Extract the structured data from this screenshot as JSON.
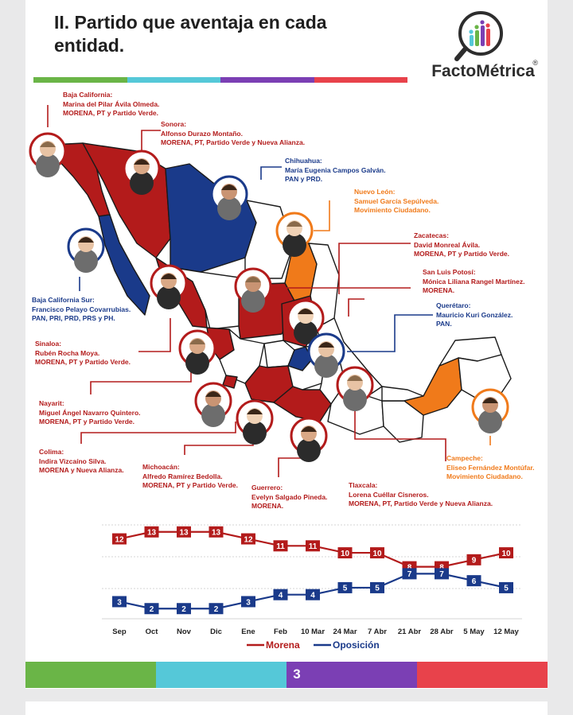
{
  "page_title": "II. Partido que aventaja en cada entidad.",
  "logo": {
    "name": "FactoMétrica",
    "reg": "®"
  },
  "colors": {
    "green": "#6ab547",
    "cyan": "#55c8d8",
    "purple": "#7b3fb4",
    "red_bar": "#e8424b",
    "morena": "#b31b1b",
    "oposicion": "#1a3a8a",
    "mc": "#f07a1a"
  },
  "callouts": [
    {
      "state": "Baja California:",
      "name": "Marina del Pilar Ávila Olmeda.",
      "party": "MORENA, PT y Partido Verde.",
      "color": "red"
    },
    {
      "state": "Sonora:",
      "name": "Alfonso Durazo Montaño.",
      "party": "MORENA, PT, Partido Verde y Nueva Alianza.",
      "color": "red"
    },
    {
      "state": "Chihuahua:",
      "name": "María Eugenia Campos Galván.",
      "party": "PAN y PRD.",
      "color": "blue"
    },
    {
      "state": "Nuevo León:",
      "name": "Samuel García Sepúlveda.",
      "party": "Movimiento Ciudadano.",
      "color": "orange"
    },
    {
      "state": "Zacatecas:",
      "name": "David Monreal Ávila.",
      "party": "MORENA, PT y Partido Verde.",
      "color": "red"
    },
    {
      "state": "San Luis Potosí:",
      "name": "Mónica Liliana Rangel Martínez.",
      "party": "MORENA.",
      "color": "red"
    },
    {
      "state": "Querétaro:",
      "name": "Mauricio Kuri González.",
      "party": "PAN.",
      "color": "blue"
    },
    {
      "state": "Baja California Sur:",
      "name": "Francisco Pelayo Covarrubias.",
      "party": "PAN, PRI, PRD, PRS y PH.",
      "color": "blue"
    },
    {
      "state": "Sinaloa:",
      "name": "Rubén Rocha Moya.",
      "party": "MORENA, PT y Partido Verde.",
      "color": "red"
    },
    {
      "state": "Nayarit:",
      "name": "Miguel Ángel Navarro Quintero.",
      "party": "MORENA, PT y Partido Verde.",
      "color": "red"
    },
    {
      "state": "Colima:",
      "name": "Indira Vizcaíno Silva.",
      "party": "MORENA y Nueva Alianza.",
      "color": "red"
    },
    {
      "state": "Michoacán:",
      "name": "Alfredo Ramírez Bedolla.",
      "party": "MORENA, PT y Partido Verde.",
      "color": "red"
    },
    {
      "state": "Guerrero:",
      "name": "Evelyn Salgado Pineda.",
      "party": "MORENA.",
      "color": "red"
    },
    {
      "state": "Tlaxcala:",
      "name": "Lorena Cuéllar Cisneros.",
      "party": "MORENA, PT, Partido Verde y Nueva Alianza.",
      "color": "red"
    },
    {
      "state": "Campeche:",
      "name": "Eliseo Fernández Montúfar.",
      "party": "Movimiento Ciudadano.",
      "color": "orange"
    }
  ],
  "chart_data": {
    "type": "line",
    "categories": [
      "Sep",
      "Oct",
      "Nov",
      "Dic",
      "Ene",
      "Feb",
      "10 Mar",
      "24 Mar",
      "7 Abr",
      "21 Abr",
      "28 Abr",
      "5 May",
      "12 May"
    ],
    "series": [
      {
        "name": "Morena",
        "color": "#b31b1b",
        "values": [
          12,
          13,
          13,
          13,
          12,
          11,
          11,
          10,
          10,
          8,
          8,
          9,
          10
        ]
      },
      {
        "name": "Oposición",
        "color": "#1a3a8a",
        "values": [
          3,
          2,
          2,
          2,
          3,
          4,
          4,
          5,
          5,
          7,
          7,
          6,
          5
        ]
      }
    ],
    "ylim": [
      1,
      14
    ],
    "grid": true,
    "legend": "bottom"
  },
  "page_number": "3"
}
